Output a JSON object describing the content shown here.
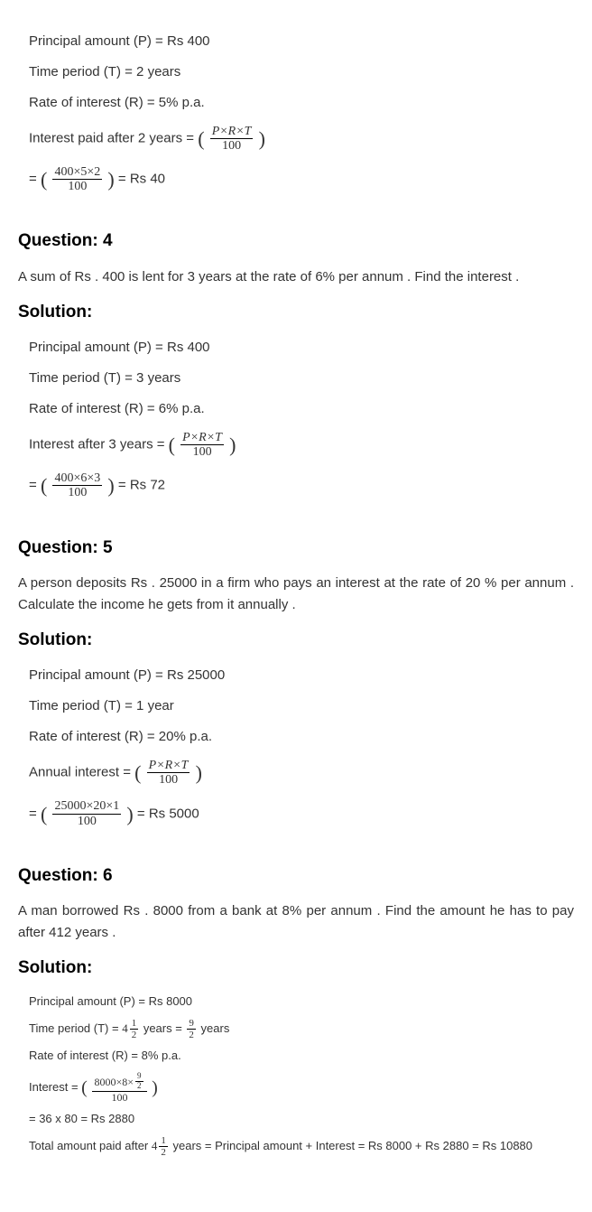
{
  "intro_solution": {
    "principal_line": "Principal amount (P) = Rs 400",
    "time_line": "Time period (T) = 2 years",
    "rate_line": "Rate of interest (R) = 5% p.a.",
    "interest_label": "Interest paid after 2 years = ",
    "formula_num": "P×R×T",
    "formula_den": "100",
    "calc_num": "400×5×2",
    "calc_den": "100",
    "result": " = Rs 40"
  },
  "q4": {
    "heading": "Question: 4",
    "text": "A sum of Rs . 400 is lent for 3 years at the rate of 6% per annum . Find the interest .",
    "sol_heading": "Solution:",
    "principal_line": "Principal amount (P) = Rs 400",
    "time_line": "Time period (T) = 3 years",
    "rate_line": "Rate of interest (R) = 6% p.a.",
    "interest_label": "Interest after 3 years = ",
    "formula_num": "P×R×T",
    "formula_den": "100",
    "calc_num": "400×6×3",
    "calc_den": "100",
    "result": "= Rs 72"
  },
  "q5": {
    "heading": "Question: 5",
    "text": "A person deposits Rs . 25000 in a firm who pays an interest at the rate of 20 % per annum . Calculate the income he gets from it annually .",
    "sol_heading": "Solution:",
    "principal_line": "Principal amount (P) = Rs 25000",
    "time_line": "Time period (T) = 1 year",
    "rate_line": "Rate of interest (R) = 20% p.a.",
    "interest_label": "Annual interest = ",
    "formula_num": "P×R×T",
    "formula_den": "100",
    "calc_num": "25000×20×1",
    "calc_den": "100",
    "result": " = Rs 5000"
  },
  "q6": {
    "heading": "Question: 6",
    "text": "A man borrowed Rs . 8000 from a bank at 8% per annum . Find the amount he has to pay after 412 years .",
    "sol_heading": "Solution:",
    "principal_line": "Principal amount (P) = Rs 8000",
    "time_label_pre": "Time period (T) = ",
    "mixed_whole": "4",
    "mixed_num": "1",
    "mixed_den": "2",
    "time_label_mid": " years = ",
    "frac92_num": "9",
    "frac92_den": "2",
    "time_label_post": " years",
    "rate_line": "Rate of interest (R) = 8% p.a.",
    "interest_label": "Interest = ",
    "calc_num_pre": "8000×8×",
    "calc_inner_num": "9",
    "calc_inner_den": "2",
    "calc_den": "100",
    "calc_line2": "= 36 x 80 = Rs 2880",
    "total_label_pre": "Total amount paid after ",
    "total_label_post": " years = Principal amount + Interest = Rs 8000 + Rs 2880 = Rs 10880"
  }
}
